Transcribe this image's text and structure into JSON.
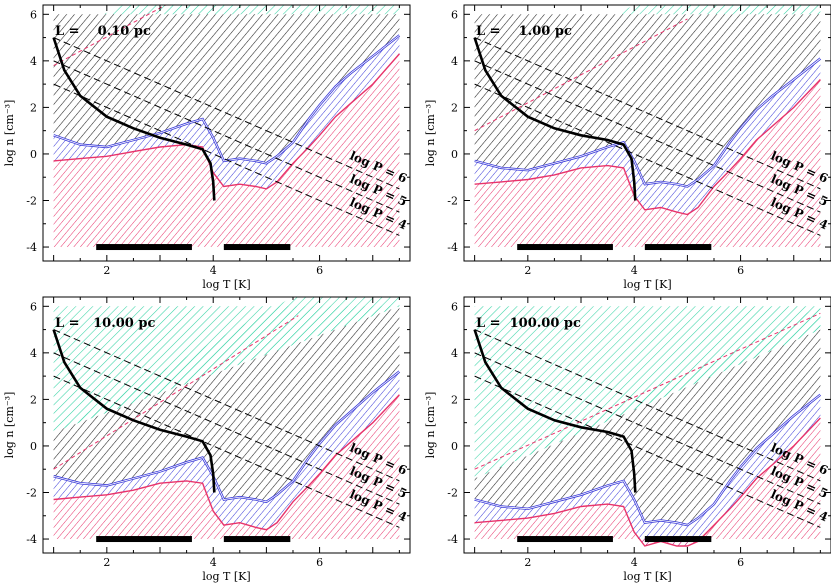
{
  "figure": {
    "xlabel": "log T [K]",
    "ylabel": "log n [cm⁻³]",
    "xlim": [
      0.8,
      7.7
    ],
    "ylim": [
      -4.6,
      6.4
    ],
    "xticks": [
      2,
      4,
      6
    ],
    "yticks": [
      -4,
      -2,
      0,
      2,
      4,
      6
    ],
    "pressure_labels": [
      "log P = 6",
      "log P = 5",
      "log P = 4"
    ],
    "colors": {
      "thermal_unstable_pink": "#e8336b",
      "blue_band": "#3b3bd9",
      "black_hatch": "#222222",
      "green_hatch": "#38d4a6",
      "pink_dashed": "#e8336b",
      "isobar_dashed": "#000000"
    }
  },
  "chart_data": [
    {
      "type": "area",
      "title": "L =    0.10 pc",
      "xlabel": "log T [K]",
      "ylabel": "log n [cm⁻³]",
      "xlim": [
        0.8,
        7.7
      ],
      "ylim": [
        -4.6,
        6.4
      ],
      "isobars": [
        {
          "label": "log P = 6",
          "x": [
            1.0,
            7.5
          ],
          "y": [
            5.0,
            -1.5
          ]
        },
        {
          "label": "log P = 5",
          "x": [
            1.0,
            7.5
          ],
          "y": [
            4.0,
            -2.5
          ]
        },
        {
          "label": "log P = 4",
          "x": [
            1.0,
            7.5
          ],
          "y": [
            3.0,
            -3.5
          ]
        }
      ],
      "series": [
        {
          "name": "pink boundary",
          "x": [
            1.0,
            1.5,
            2.0,
            2.5,
            3.0,
            3.5,
            3.8,
            4.0,
            4.2,
            4.5,
            4.8,
            5.0,
            5.2,
            5.5,
            5.8,
            6.0,
            6.3,
            6.6,
            7.0,
            7.5
          ],
          "y": [
            -0.3,
            -0.2,
            -0.1,
            0.1,
            0.3,
            0.4,
            0.3,
            -0.8,
            -1.4,
            -1.3,
            -1.4,
            -1.5,
            -1.2,
            -0.4,
            0.3,
            0.8,
            1.6,
            2.2,
            3.0,
            4.3
          ]
        },
        {
          "name": "blue boundary",
          "x": [
            1.0,
            1.5,
            2.0,
            2.5,
            3.0,
            3.5,
            3.8,
            4.0,
            4.2,
            4.5,
            4.8,
            5.0,
            5.2,
            5.5,
            5.8,
            6.0,
            6.3,
            6.6,
            7.0,
            7.5
          ],
          "y": [
            0.8,
            0.4,
            0.3,
            0.6,
            0.9,
            1.3,
            1.5,
            0.7,
            -0.3,
            -0.2,
            -0.3,
            -0.4,
            -0.1,
            0.5,
            1.5,
            2.1,
            2.9,
            3.5,
            4.2,
            5.1
          ]
        },
        {
          "name": "black hatch top",
          "x": [
            1.0,
            7.5
          ],
          "y": [
            6.0,
            6.0
          ]
        },
        {
          "name": "pink dashed",
          "x": [
            1.0,
            4.0
          ],
          "y": [
            3.8,
            7.5
          ]
        },
        {
          "name": "green boundary",
          "x": [
            1.0,
            4.0
          ],
          "y": [
            5.0,
            8.2
          ]
        },
        {
          "name": "cooling track",
          "x": [
            1.0,
            1.2,
            1.5,
            2.0,
            2.5,
            3.0,
            3.5,
            3.8,
            3.95,
            4.0,
            4.02
          ],
          "y": [
            5.0,
            3.6,
            2.5,
            1.6,
            1.1,
            0.7,
            0.4,
            0.2,
            -0.4,
            -1.2,
            -2.0
          ]
        }
      ],
      "bars": [
        {
          "x": [
            1.8,
            3.6
          ],
          "y": -4.0
        },
        {
          "x": [
            4.2,
            5.45
          ],
          "y": -4.0
        }
      ]
    },
    {
      "type": "area",
      "title": "L =    1.00 pc",
      "xlabel": "log T [K]",
      "ylabel": "log n [cm⁻³]",
      "xlim": [
        0.8,
        7.7
      ],
      "ylim": [
        -4.6,
        6.4
      ],
      "isobars": [
        {
          "label": "log P = 6",
          "x": [
            1.0,
            7.5
          ],
          "y": [
            5.0,
            -1.5
          ]
        },
        {
          "label": "log P = 5",
          "x": [
            1.0,
            7.5
          ],
          "y": [
            4.0,
            -2.5
          ]
        },
        {
          "label": "log P = 4",
          "x": [
            1.0,
            7.5
          ],
          "y": [
            3.0,
            -3.5
          ]
        }
      ],
      "series": [
        {
          "name": "pink boundary",
          "x": [
            1.0,
            1.5,
            2.0,
            2.5,
            3.0,
            3.5,
            3.8,
            4.0,
            4.2,
            4.5,
            4.8,
            5.0,
            5.2,
            5.5,
            5.8,
            6.0,
            6.3,
            6.6,
            7.0,
            7.5
          ],
          "y": [
            -1.3,
            -1.2,
            -1.1,
            -0.9,
            -0.6,
            -0.5,
            -0.6,
            -1.8,
            -2.4,
            -2.3,
            -2.5,
            -2.6,
            -2.3,
            -1.4,
            -0.7,
            -0.2,
            0.6,
            1.2,
            2.0,
            3.2
          ]
        },
        {
          "name": "blue boundary",
          "x": [
            1.0,
            1.5,
            2.0,
            2.5,
            3.0,
            3.5,
            3.8,
            4.0,
            4.2,
            4.5,
            4.8,
            5.0,
            5.2,
            5.5,
            5.8,
            6.0,
            6.3,
            6.6,
            7.0,
            7.5
          ],
          "y": [
            -0.3,
            -0.6,
            -0.7,
            -0.4,
            -0.1,
            0.3,
            0.5,
            -0.3,
            -1.3,
            -1.2,
            -1.3,
            -1.4,
            -1.1,
            -0.5,
            0.5,
            1.1,
            1.9,
            2.5,
            3.2,
            4.1
          ]
        },
        {
          "name": "black hatch top",
          "x": [
            1.0,
            7.5
          ],
          "y": [
            6.0,
            6.0
          ]
        },
        {
          "name": "pink dashed",
          "x": [
            1.0,
            5.0
          ],
          "y": [
            1.0,
            5.8
          ]
        },
        {
          "name": "green boundary",
          "x": [
            1.0,
            6.3
          ],
          "y": [
            3.0,
            9.0
          ]
        },
        {
          "name": "cooling track",
          "x": [
            1.0,
            1.2,
            1.5,
            2.0,
            2.5,
            3.0,
            3.5,
            3.8,
            3.95,
            4.0,
            4.02
          ],
          "y": [
            5.0,
            3.6,
            2.5,
            1.6,
            1.1,
            0.8,
            0.6,
            0.4,
            -0.2,
            -1.2,
            -2.0
          ]
        }
      ],
      "bars": [
        {
          "x": [
            1.8,
            3.6
          ],
          "y": -4.0
        },
        {
          "x": [
            4.2,
            5.45
          ],
          "y": -4.0
        }
      ]
    },
    {
      "type": "area",
      "title": "L =   10.00 pc",
      "xlabel": "log T [K]",
      "ylabel": "log n [cm⁻³]",
      "xlim": [
        0.8,
        7.7
      ],
      "ylim": [
        -4.6,
        6.4
      ],
      "isobars": [
        {
          "label": "log P = 6",
          "x": [
            1.0,
            7.5
          ],
          "y": [
            5.0,
            -1.5
          ]
        },
        {
          "label": "log P = 5",
          "x": [
            1.0,
            7.5
          ],
          "y": [
            4.0,
            -2.5
          ]
        },
        {
          "label": "log P = 4",
          "x": [
            1.0,
            7.5
          ],
          "y": [
            3.0,
            -3.5
          ]
        }
      ],
      "series": [
        {
          "name": "pink boundary",
          "x": [
            1.0,
            1.5,
            2.0,
            2.5,
            3.0,
            3.5,
            3.8,
            4.0,
            4.2,
            4.5,
            4.8,
            5.0,
            5.2,
            5.5,
            5.8,
            6.0,
            6.3,
            6.6,
            7.0,
            7.5
          ],
          "y": [
            -2.3,
            -2.2,
            -2.1,
            -1.9,
            -1.6,
            -1.5,
            -1.6,
            -2.8,
            -3.4,
            -3.3,
            -3.5,
            -3.6,
            -3.3,
            -2.4,
            -1.7,
            -1.2,
            -0.4,
            0.2,
            1.0,
            2.2
          ]
        },
        {
          "name": "blue boundary",
          "x": [
            1.0,
            1.5,
            2.0,
            2.5,
            3.0,
            3.5,
            3.8,
            4.0,
            4.2,
            4.5,
            4.8,
            5.0,
            5.2,
            5.5,
            5.8,
            6.0,
            6.3,
            6.6,
            7.0,
            7.5
          ],
          "y": [
            -1.3,
            -1.6,
            -1.7,
            -1.4,
            -1.1,
            -0.7,
            -0.5,
            -1.3,
            -2.3,
            -2.2,
            -2.3,
            -2.4,
            -2.1,
            -1.5,
            -0.5,
            0.1,
            0.9,
            1.5,
            2.3,
            3.2
          ]
        },
        {
          "name": "black hatch top",
          "x": [
            1.0,
            7.5
          ],
          "y": [
            0.6,
            6.0
          ]
        },
        {
          "name": "pink dashed",
          "x": [
            1.0,
            5.6
          ],
          "y": [
            -1.0,
            5.6
          ]
        },
        {
          "name": "green boundary",
          "x": [
            1.0,
            7.5
          ],
          "y": [
            0.6,
            9.0
          ]
        },
        {
          "name": "cooling track",
          "x": [
            1.0,
            1.2,
            1.5,
            2.0,
            2.5,
            3.0,
            3.5,
            3.8,
            3.95,
            4.0,
            4.02
          ],
          "y": [
            5.0,
            3.6,
            2.5,
            1.6,
            1.1,
            0.7,
            0.4,
            0.2,
            -0.4,
            -1.2,
            -2.0
          ]
        }
      ],
      "bars": [
        {
          "x": [
            1.8,
            3.6
          ],
          "y": -4.0
        },
        {
          "x": [
            4.2,
            5.45
          ],
          "y": -4.0
        }
      ]
    },
    {
      "type": "area",
      "title": "L =  100.00 pc",
      "xlabel": "log T [K]",
      "ylabel": "log n [cm⁻³]",
      "xlim": [
        0.8,
        7.7
      ],
      "ylim": [
        -4.6,
        6.4
      ],
      "isobars": [
        {
          "label": "log P = 6",
          "x": [
            1.0,
            7.5
          ],
          "y": [
            5.0,
            -1.5
          ]
        },
        {
          "label": "log P = 5",
          "x": [
            1.0,
            7.5
          ],
          "y": [
            4.0,
            -2.5
          ]
        },
        {
          "label": "log P = 4",
          "x": [
            1.0,
            7.5
          ],
          "y": [
            3.0,
            -3.5
          ]
        }
      ],
      "series": [
        {
          "name": "pink boundary",
          "x": [
            1.0,
            1.5,
            2.0,
            2.5,
            3.0,
            3.5,
            3.8,
            4.0,
            4.2,
            4.5,
            4.8,
            5.0,
            5.2,
            5.5,
            5.8,
            6.0,
            6.3,
            6.6,
            7.0,
            7.5
          ],
          "y": [
            -3.3,
            -3.2,
            -3.1,
            -2.9,
            -2.6,
            -2.5,
            -2.6,
            -3.7,
            -4.3,
            -4.1,
            -4.3,
            -4.3,
            -4.1,
            -3.4,
            -2.7,
            -2.2,
            -1.4,
            -0.8,
            0.0,
            1.2
          ]
        },
        {
          "name": "blue boundary",
          "x": [
            1.0,
            1.5,
            2.0,
            2.5,
            3.0,
            3.5,
            3.8,
            4.0,
            4.2,
            4.5,
            4.8,
            5.0,
            5.2,
            5.5,
            5.8,
            6.0,
            6.3,
            6.6,
            7.0,
            7.5
          ],
          "y": [
            -2.3,
            -2.6,
            -2.7,
            -2.4,
            -2.1,
            -1.7,
            -1.5,
            -2.3,
            -3.3,
            -3.2,
            -3.3,
            -3.4,
            -3.1,
            -2.5,
            -1.5,
            -0.9,
            -0.1,
            0.5,
            1.3,
            2.2
          ]
        },
        {
          "name": "black hatch top",
          "x": [
            1.0,
            7.5
          ],
          "y": [
            -1.4,
            5.0
          ]
        },
        {
          "name": "pink dashed",
          "x": [
            1.0,
            7.5
          ],
          "y": [
            -1.0,
            5.7
          ]
        },
        {
          "name": "green boundary",
          "x": [
            1.0,
            7.5
          ],
          "y": [
            -1.4,
            6.0
          ]
        },
        {
          "name": "cooling track",
          "x": [
            1.0,
            1.2,
            1.5,
            2.0,
            2.5,
            3.0,
            3.5,
            3.8,
            3.95,
            4.0,
            4.02
          ],
          "y": [
            5.0,
            3.6,
            2.5,
            1.6,
            1.1,
            0.8,
            0.6,
            0.4,
            -0.2,
            -1.2,
            -2.0
          ]
        }
      ],
      "bars": [
        {
          "x": [
            1.8,
            3.6
          ],
          "y": -4.0
        },
        {
          "x": [
            4.2,
            5.45
          ],
          "y": -4.0
        }
      ]
    }
  ]
}
